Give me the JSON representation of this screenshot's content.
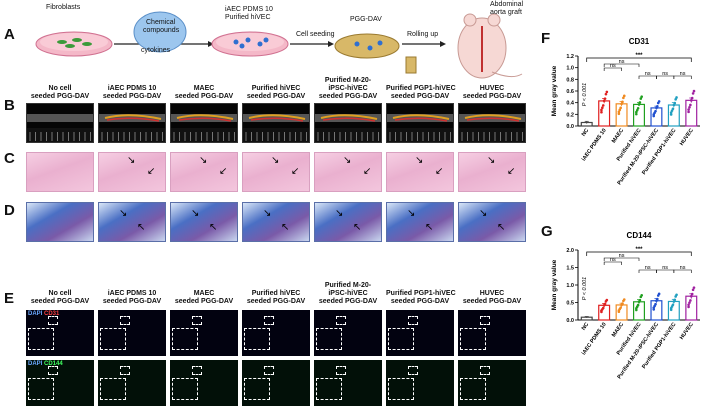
{
  "panels": {
    "A": "A",
    "B": "B",
    "C": "C",
    "D": "D",
    "E": "E",
    "F": "F",
    "G": "G"
  },
  "schematic": {
    "fibroblasts": "Fibroblasts",
    "chem1": "Chemical",
    "chem2": "compounds",
    "cytokines": "cytokines",
    "iaec1": "iAEC PDMS 10",
    "iaec2": "Purified hiVEC",
    "seeding": "Cell seeding",
    "pgg": "PGG-DAV",
    "rolling": "Rolling up",
    "aorta1": "Abdominal",
    "aorta2": "aorta graft"
  },
  "groups": [
    {
      "l1": "No cell",
      "l2": "seeded PGG-DAV"
    },
    {
      "l1": "iAEC PDMS 10",
      "l2": "seeded PGG-DAV"
    },
    {
      "l1": "MAEC",
      "l2": "seeded PGG-DAV"
    },
    {
      "l1": "Purified hiVEC",
      "l2": "seeded PGG-DAV"
    },
    {
      "l1": "Purified M-20-",
      "l2": "iPSC-hiVEC",
      "l3": "seeded PGG-DAV"
    },
    {
      "l1": "Purified PGP1-hiVEC",
      "l2": "seeded PGG-DAV"
    },
    {
      "l1": "HUVEC",
      "l2": "seeded PGG-DAV"
    }
  ],
  "stain_labels": {
    "dapi": "DAPI",
    "cd31": "CD31",
    "cd144": "CD144"
  },
  "colors": {
    "nc": "#444444",
    "iaec": "#e02020",
    "maec": "#f08a20",
    "hivec": "#20a020",
    "m20": "#2050d0",
    "pgp1": "#20a0c0",
    "huvec": "#a020a0"
  },
  "chart_data": [
    {
      "type": "bar",
      "title": "CD31",
      "ylabel": "Mean gray value",
      "ylim": [
        0,
        1.2
      ],
      "yticks": [
        "0.0",
        "0.2",
        "0.4",
        "0.6",
        "0.8",
        "1.0",
        "1.2"
      ],
      "categories": [
        "NC",
        "iAEC PDMS 10",
        "MAEC",
        "Purified hiVEC",
        "Purified M-20-iPSC-hiVEC",
        "Purified PGP1-hiVEC",
        "HUVEC"
      ],
      "values": [
        0.06,
        0.43,
        0.38,
        0.37,
        0.31,
        0.36,
        0.44
      ],
      "errors": [
        0.02,
        0.04,
        0.04,
        0.03,
        0.03,
        0.04,
        0.04
      ],
      "pvalue": "P < 0.001",
      "sig": "***",
      "ns": [
        "ns",
        "ns",
        "ns",
        "ns",
        "ns"
      ]
    },
    {
      "type": "bar",
      "title": "CD144",
      "ylabel": "Mean gray value",
      "ylim": [
        0,
        2.0
      ],
      "yticks": [
        "0.0",
        "0.5",
        "1.0",
        "1.5",
        "2.0"
      ],
      "categories": [
        "NC",
        "iAEC PDMS 10",
        "MAEC",
        "Purified hiVEC",
        "Purified M-20-iPSC-hiVEC",
        "Purified PGP1-hiVEC",
        "HUVEC"
      ],
      "values": [
        0.08,
        0.42,
        0.43,
        0.52,
        0.55,
        0.53,
        0.68
      ],
      "errors": [
        0.02,
        0.05,
        0.05,
        0.06,
        0.06,
        0.06,
        0.07
      ],
      "pvalue": "P < 0.001",
      "sig": "***",
      "ns": [
        "ns",
        "ns",
        "ns",
        "ns",
        "ns"
      ]
    }
  ]
}
